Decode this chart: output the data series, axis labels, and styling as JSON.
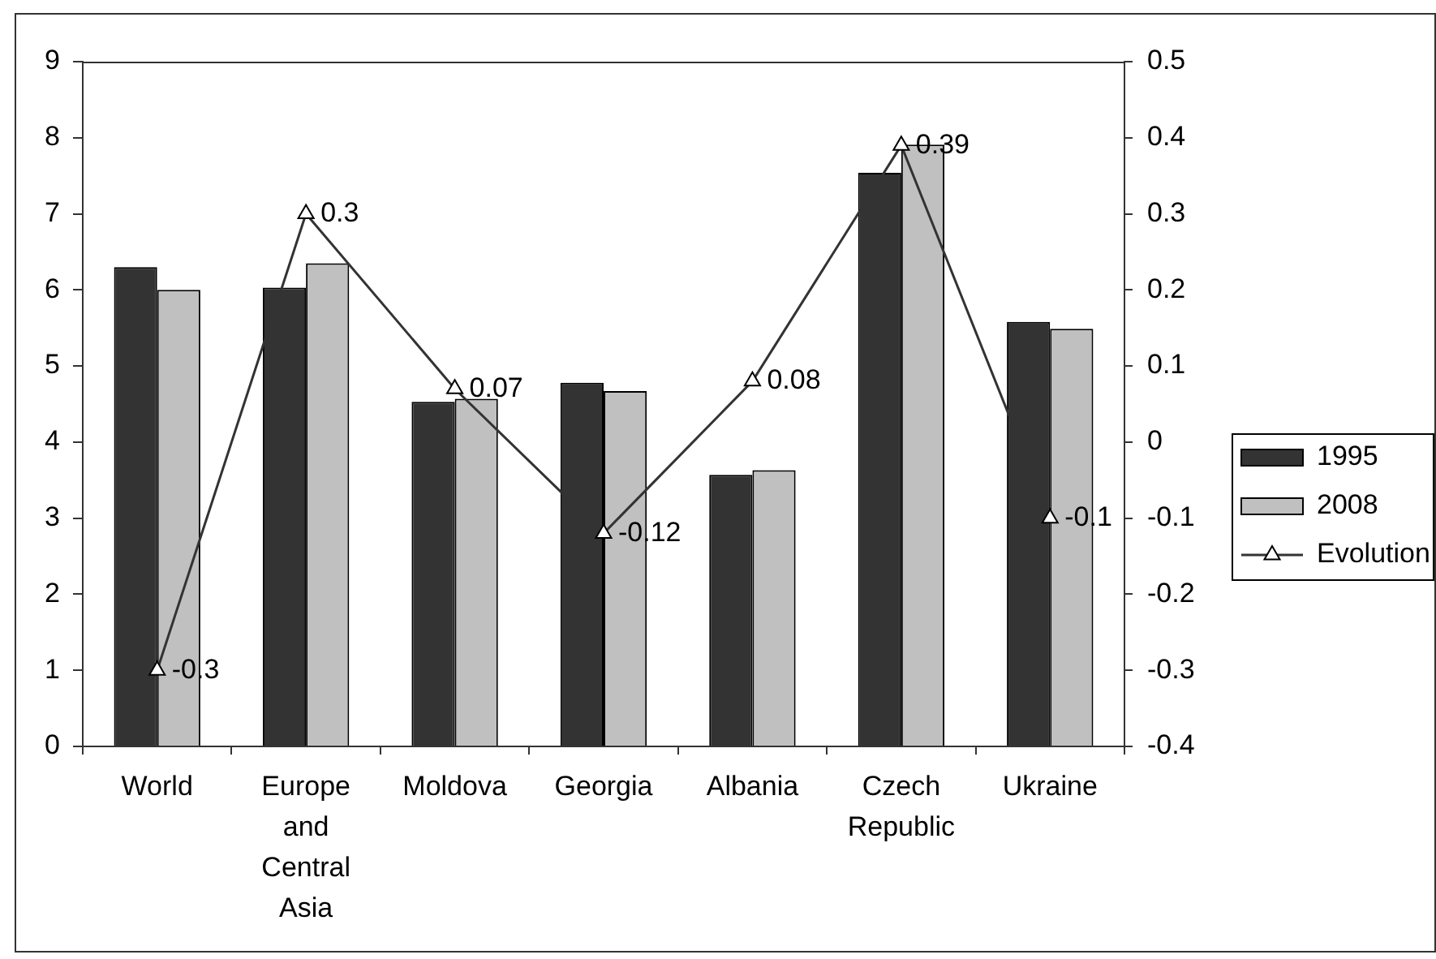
{
  "chart_data": {
    "type": "bar",
    "categories": [
      "World",
      "Europe and Central Asia",
      "Moldova",
      "Georgia",
      "Albania",
      "Czech Republic",
      "Ukraine"
    ],
    "series": [
      {
        "name": "1995",
        "color": "#333333",
        "values": [
          6.3,
          6.03,
          4.53,
          4.78,
          3.57,
          7.54,
          5.58
        ]
      },
      {
        "name": "2008",
        "color": "#c0c0c0",
        "values": [
          6,
          6.35,
          4.57,
          4.67,
          3.63,
          7.91,
          5.49
        ]
      },
      {
        "name": "Evolution",
        "type": "line",
        "axis": "y2",
        "color": "#333333",
        "marker": "triangle",
        "values": [
          -0.3,
          0.3,
          0.07,
          -0.12,
          0.08,
          0.39,
          -0.1
        ],
        "value_labels": [
          "-0.3",
          "0.3",
          "0.07",
          "-0.12",
          "0.08",
          "0.39",
          "-0.1"
        ]
      }
    ],
    "ylim": [
      0,
      9
    ],
    "yticks": [
      0,
      1,
      2,
      3,
      4,
      5,
      6,
      7,
      8,
      9
    ],
    "y2lim": [
      -0.4,
      0.5
    ],
    "y2ticks": [
      -0.4,
      -0.3,
      -0.2,
      -0.1,
      0,
      0.1,
      0.2,
      0.3,
      0.4,
      0.5
    ],
    "grid": false,
    "legend": "right"
  }
}
